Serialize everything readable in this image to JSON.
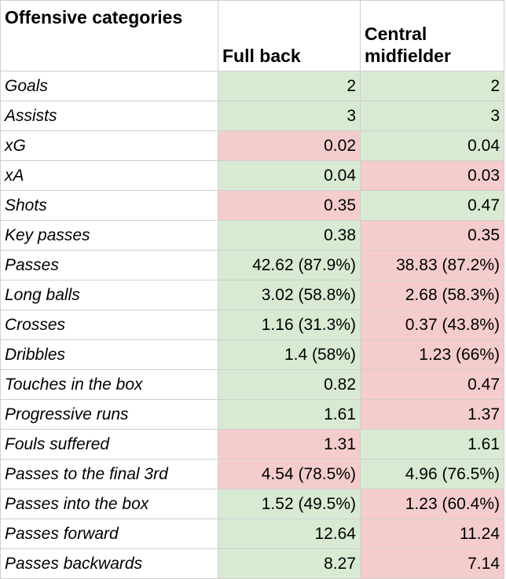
{
  "table": {
    "header": [
      "Offensive categories",
      "Full back",
      "Central midfielder"
    ],
    "rows": [
      [
        "Goals",
        "2",
        "2"
      ],
      [
        "Assists",
        "3",
        "3"
      ],
      [
        "xG",
        "0.02",
        "0.04"
      ],
      [
        "xA",
        "0.04",
        "0.03"
      ],
      [
        "Shots",
        "0.35",
        "0.47"
      ],
      [
        "Key passes",
        "0.38",
        "0.35"
      ],
      [
        "Passes",
        "42.62 (87.9%)",
        "38.83 (87.2%)"
      ],
      [
        "Long balls",
        "3.02 (58.8%)",
        "2.68 (58.3%)"
      ],
      [
        "Crosses",
        "1.16 (31.3%)",
        "0.37 (43.8%)"
      ],
      [
        "Dribbles",
        "1.4 (58%)",
        "1.23 (66%)"
      ],
      [
        "Touches in the box",
        "0.82",
        "0.47"
      ],
      [
        "Progressive runs",
        "1.61",
        "1.37"
      ],
      [
        "Fouls suffered",
        "1.31",
        "1.61"
      ],
      [
        "Passes to the final 3rd",
        "4.54 (78.5%)",
        "4.96 (76.5%)"
      ],
      [
        "Passes into the box",
        "1.52 (49.5%)",
        "1.23 (60.4%)"
      ],
      [
        "Passes forward",
        "12.64",
        "11.24"
      ],
      [
        "Passes backwards",
        "8.27",
        "7.14"
      ]
    ],
    "fills": [
      [
        "#d9ead3",
        "#d9ead3"
      ],
      [
        "#d9ead3",
        "#d9ead3"
      ],
      [
        "#f4cccc",
        "#d9ead3"
      ],
      [
        "#d9ead3",
        "#f4cccc"
      ],
      [
        "#f4cccc",
        "#d9ead3"
      ],
      [
        "#d9ead3",
        "#f4cccc"
      ],
      [
        "#d9ead3",
        "#f4cccc"
      ],
      [
        "#d9ead3",
        "#f4cccc"
      ],
      [
        "#d9ead3",
        "#f4cccc"
      ],
      [
        "#d9ead3",
        "#f4cccc"
      ],
      [
        "#d9ead3",
        "#f4cccc"
      ],
      [
        "#d9ead3",
        "#f4cccc"
      ],
      [
        "#f4cccc",
        "#d9ead3"
      ],
      [
        "#f4cccc",
        "#d9ead3"
      ],
      [
        "#d9ead3",
        "#f4cccc"
      ],
      [
        "#d9ead3",
        "#f4cccc"
      ],
      [
        "#d9ead3",
        "#f4cccc"
      ]
    ]
  }
}
